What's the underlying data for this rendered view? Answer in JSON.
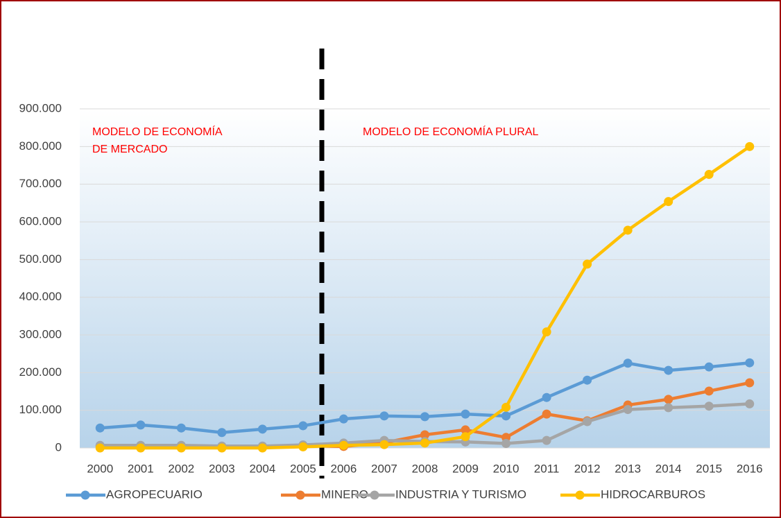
{
  "chart_data": {
    "type": "line",
    "categories": [
      "2000",
      "2001",
      "2002",
      "2003",
      "2004",
      "2005",
      "2006",
      "2007",
      "2008",
      "2009",
      "2010",
      "2011",
      "2012",
      "2013",
      "2014",
      "2015",
      "2016"
    ],
    "series": [
      {
        "name": "AGROPECUARIO",
        "color": "#5b9bd5",
        "values": [
          53000,
          61000,
          53000,
          41000,
          50000,
          59000,
          77000,
          85000,
          83000,
          90000,
          85000,
          134000,
          180000,
          225000,
          206000,
          215000,
          226000
        ]
      },
      {
        "name": "MINERO",
        "color": "#ed7d31",
        "values": [
          5000,
          5000,
          5000,
          4000,
          4000,
          6000,
          4000,
          14000,
          35000,
          48000,
          28000,
          90000,
          72000,
          114000,
          129000,
          151000,
          173000
        ]
      },
      {
        "name": "INDUSTRIA Y TURISMO",
        "color": "#a5a5a5",
        "values": [
          7000,
          7000,
          7000,
          5000,
          5000,
          8000,
          13000,
          20000,
          17000,
          16000,
          12000,
          20000,
          70000,
          102000,
          107000,
          111000,
          117000
        ]
      },
      {
        "name": "HIDROCARBUROS",
        "color": "#ffc000",
        "values": [
          0,
          0,
          0,
          0,
          0,
          3000,
          7000,
          9000,
          13000,
          30000,
          108000,
          308000,
          488000,
          578000,
          654000,
          726000,
          800000
        ]
      }
    ],
    "ylim": [
      0,
      900000
    ],
    "yticks": [
      0,
      {
        "value": 100000,
        "label": "100.000"
      },
      {
        "value": 200000,
        "label": "200.000"
      },
      {
        "value": 300000,
        "label": "300.000"
      },
      {
        "value": 400000,
        "label": "400.000"
      },
      {
        "value": 500000,
        "label": "500.000"
      },
      {
        "value": 600000,
        "label": "600.000"
      },
      {
        "value": 700000,
        "label": "700.000"
      },
      {
        "value": 800000,
        "label": "800.000"
      },
      {
        "value": 900000,
        "label": "900.000"
      }
    ],
    "grid": true,
    "legend": "bottom",
    "annotations": [
      "MODELO DE ECONOMÍA",
      " DE MERCADO",
      "MODELO DE ECONOMÍA PLURAL"
    ]
  }
}
